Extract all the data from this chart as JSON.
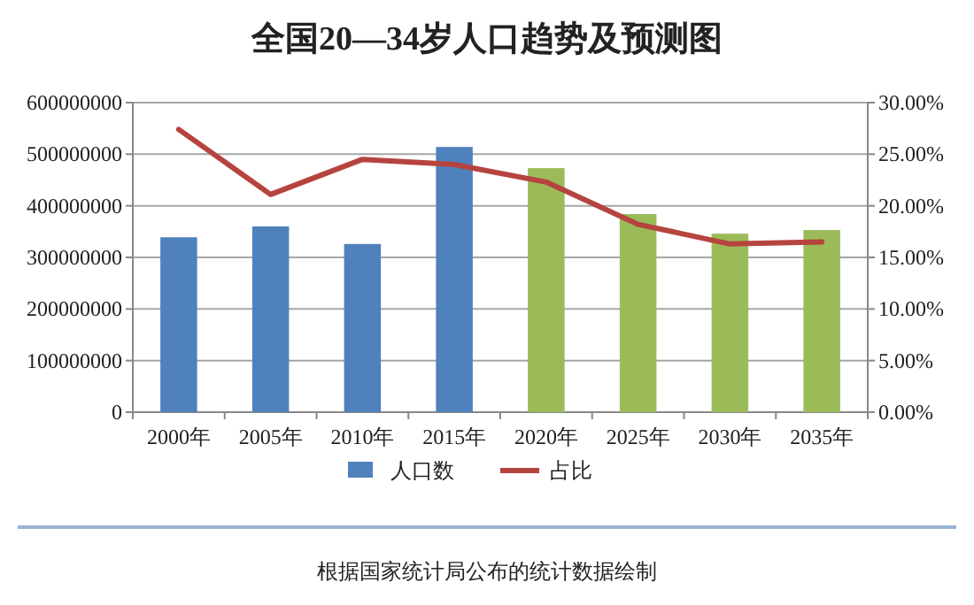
{
  "chart_data": {
    "type": "bar",
    "title": "全国20—34岁人口趋势及预测图",
    "categories": [
      "2000年",
      "2005年",
      "2010年",
      "2015年",
      "2020年",
      "2025年",
      "2030年",
      "2035年"
    ],
    "series": [
      {
        "name": "人口数",
        "color": "#4f81bd",
        "colors": [
          "#4f81bd",
          "#4f81bd",
          "#4f81bd",
          "#4f81bd",
          "#9bbb59",
          "#9bbb59",
          "#9bbb59",
          "#9bbb59"
        ],
        "values": [
          339000000,
          360000000,
          326000000,
          514000000,
          473000000,
          384000000,
          346000000,
          353000000
        ]
      },
      {
        "name": "占比",
        "type": "line",
        "axis": "y2",
        "color": "#b5443f",
        "values": [
          27.4,
          21.1,
          24.5,
          24.0,
          22.3,
          18.2,
          16.3,
          16.5
        ]
      }
    ],
    "ylim": [
      0,
      600000000
    ],
    "yticks": [
      0,
      100000000,
      200000000,
      300000000,
      400000000,
      500000000,
      600000000
    ],
    "y2lim": [
      0,
      30
    ],
    "y2ticks": [
      {
        "value": 0,
        "label": "0.00%"
      },
      {
        "value": 5,
        "label": "5.00%"
      },
      {
        "value": 10,
        "label": "10.00%"
      },
      {
        "value": 15,
        "label": "15.00%"
      },
      {
        "value": 20,
        "label": "20.00%"
      },
      {
        "value": 25,
        "label": "25.00%"
      },
      {
        "value": 30,
        "label": "30.00%"
      }
    ],
    "grid": "y",
    "legend": "bottom",
    "marker": "none",
    "line_style": "solid",
    "annotations": [
      "根据国家统计局公布的统计数据绘制"
    ]
  }
}
